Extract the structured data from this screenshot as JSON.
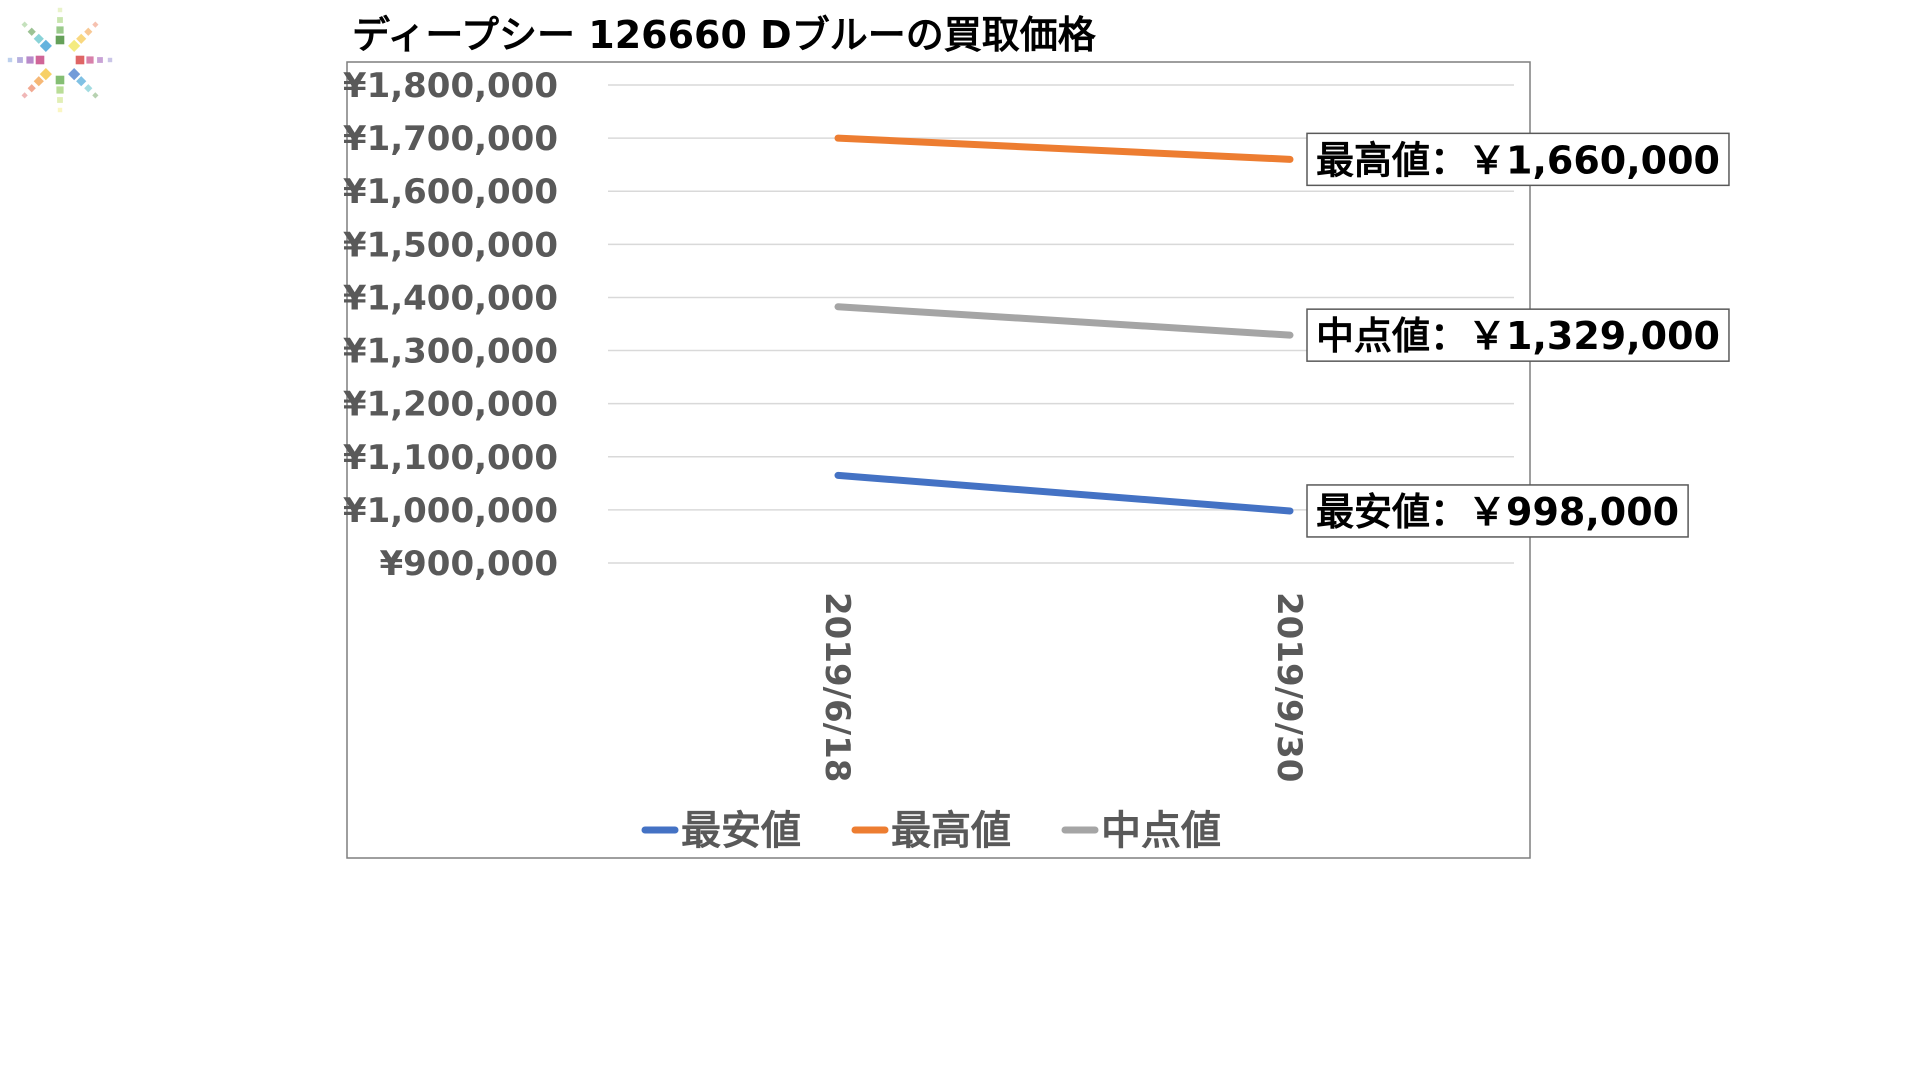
{
  "chart_data": {
    "type": "line",
    "title": "ディープシー 126660 Dブルーの買取価格",
    "categories": [
      "2019/6/18",
      "2019/9/30"
    ],
    "series": [
      {
        "name": "最安値",
        "values": [
          1065000,
          998000
        ],
        "color": "#4472C4"
      },
      {
        "name": "最高値",
        "values": [
          1700000,
          1660000
        ],
        "color": "#ED7D31"
      },
      {
        "name": "中点値",
        "values": [
          1382500,
          1329000
        ],
        "color": "#A5A5A5"
      }
    ],
    "ylim": [
      900000,
      1800000
    ],
    "y_ticks": [
      "¥1,800,000",
      "¥1,700,000",
      "¥1,600,000",
      "¥1,500,000",
      "¥1,400,000",
      "¥1,300,000",
      "¥1,200,000",
      "¥1,100,000",
      "¥1,000,000",
      "¥900,000"
    ],
    "y_tick_values": [
      1800000,
      1700000,
      1600000,
      1500000,
      1400000,
      1300000,
      1200000,
      1100000,
      1000000,
      900000
    ],
    "grid": true,
    "legend_position": "bottom",
    "annotations": [
      {
        "text": "最高値：￥1,660,000",
        "series": "最高値",
        "point": 1
      },
      {
        "text": "中点値：￥1,329,000",
        "series": "中点値",
        "point": 1
      },
      {
        "text": "最安値：￥998,000",
        "series": "最安値",
        "point": 1
      }
    ]
  },
  "logo": {
    "icon": "color-burst-logo-icon",
    "colors": [
      "#4a8f3c",
      "#6fb35a",
      "#9bcf6b",
      "#c9e27a",
      "#f2e86a",
      "#f6c84a",
      "#f29a3c",
      "#e8643a",
      "#d94a4a",
      "#c84a86",
      "#9a58b4",
      "#7a6fc4",
      "#5a8ad2",
      "#4aa6d8",
      "#58c0c8"
    ]
  }
}
